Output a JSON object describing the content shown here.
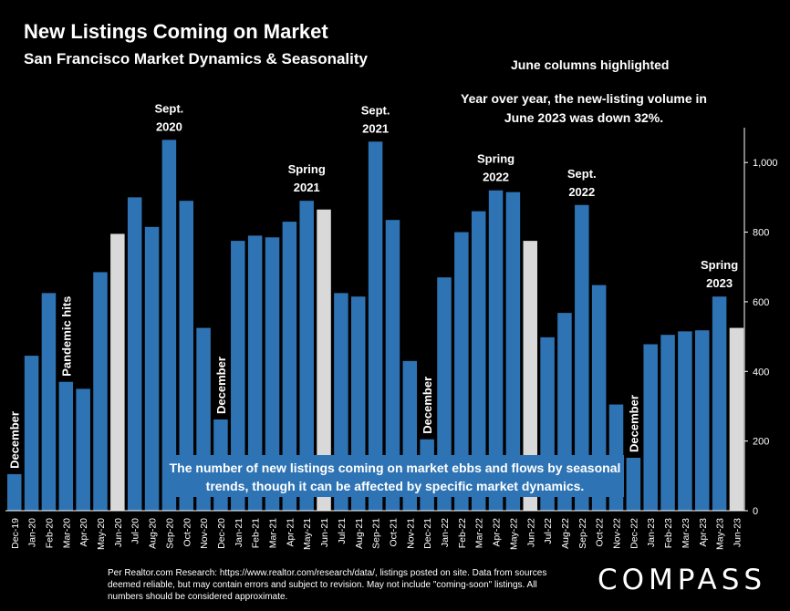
{
  "header": {
    "title": "New Listings Coming on Market",
    "subtitle": "San Francisco Market Dynamics & Seasonality"
  },
  "notes": {
    "highlight": "June columns highlighted",
    "yoy": "Year over year, the new-listing volume in June 2023 was down 32%."
  },
  "callout": "The number of new listings coming on market ebbs and flows by seasonal trends, though it can be affected by specific market dynamics.",
  "footer": "Per Realtor.com Research: https://www.realtor.com/research/data/, listings posted on site. Data from sources deemed reliable, but may contain errors and subject to revision. May not include \"coming-soon\" listings. All numbers should be considered approximate.",
  "logo": "COMPASS",
  "colors": {
    "bar": "#2e74b5",
    "highlight": "#d9d9d9",
    "background": "#000000"
  },
  "chart_data": {
    "type": "bar",
    "title": "New Listings Coming on Market",
    "subtitle": "San Francisco Market Dynamics & Seasonality",
    "categories": [
      "Dec-19",
      "Jan-20",
      "Feb-20",
      "Mar-20",
      "Apr-20",
      "May-20",
      "Jun-20",
      "Jul-20",
      "Aug-20",
      "Sep-20",
      "Oct-20",
      "Nov-20",
      "Dec-20",
      "Jan-21",
      "Feb-21",
      "Mar-21",
      "Apr-21",
      "May-21",
      "Jun-21",
      "Jul-21",
      "Aug-21",
      "Sep-21",
      "Oct-21",
      "Nov-21",
      "Dec-21",
      "Jan-22",
      "Feb-22",
      "Mar-22",
      "Apr-22",
      "May-22",
      "Jun-22",
      "Jul-22",
      "Aug-22",
      "Sep-22",
      "Oct-22",
      "Nov-22",
      "Dec-22",
      "Jan-23",
      "Feb-23",
      "Mar-23",
      "Apr-23",
      "May-23",
      "Jun-23"
    ],
    "values": [
      105,
      445,
      625,
      370,
      350,
      685,
      795,
      900,
      815,
      1065,
      890,
      525,
      262,
      775,
      790,
      785,
      830,
      890,
      865,
      625,
      615,
      1060,
      835,
      430,
      205,
      670,
      800,
      860,
      920,
      915,
      775,
      498,
      568,
      878,
      648,
      305,
      152,
      478,
      505,
      515,
      518,
      615,
      525
    ],
    "highlighted": [
      "Jun-20",
      "Jun-21",
      "Jun-22",
      "Jun-23"
    ],
    "ylim": [
      0,
      1100
    ],
    "yticks": [
      0,
      200,
      400,
      600,
      800,
      "1,000"
    ],
    "yaxis_position": "right",
    "grid": false,
    "annotations": [
      {
        "text": "December",
        "at": "Dec-19",
        "vertical": true
      },
      {
        "text": "Pandemic hits",
        "at": "Mar-20",
        "vertical": true
      },
      {
        "text": "Sept.\n2020",
        "at": "Sep-20"
      },
      {
        "text": "December",
        "at": "Dec-20",
        "vertical": true
      },
      {
        "text": "Spring\n2021",
        "at": "May-21"
      },
      {
        "text": "Sept.\n2021",
        "at": "Sep-21"
      },
      {
        "text": "December",
        "at": "Dec-21",
        "vertical": true
      },
      {
        "text": "Spring\n2022",
        "at": "Apr-22"
      },
      {
        "text": "Sept.\n2022",
        "at": "Sep-22"
      },
      {
        "text": "December",
        "at": "Dec-22",
        "vertical": true
      },
      {
        "text": "Spring\n2023",
        "at": "May-23"
      }
    ]
  }
}
